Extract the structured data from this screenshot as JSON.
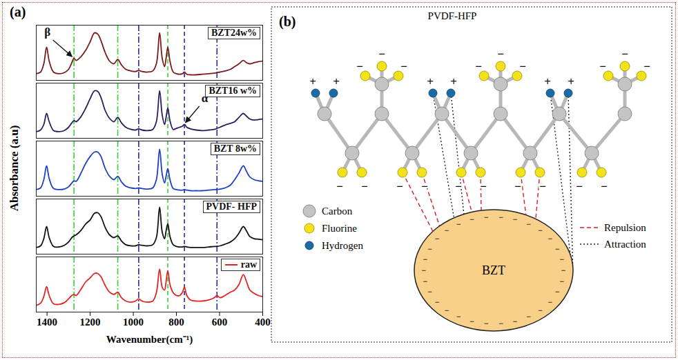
{
  "chart_data": {
    "type": "line",
    "panel_label": "(a)",
    "x_label": "Wavenumber(cm⁻¹)",
    "y_label": "Absorbance (a.u)",
    "xlim": [
      1450,
      400
    ],
    "xticks": [
      1400,
      1200,
      1000,
      800,
      600,
      400
    ],
    "ylim": [
      0,
      1
    ],
    "tick_labels": "x",
    "grid": false,
    "legend": "top-right",
    "x": [
      1450,
      1430,
      1415,
      1402,
      1390,
      1370,
      1345,
      1320,
      1300,
      1285,
      1275,
      1265,
      1245,
      1220,
      1200,
      1180,
      1165,
      1150,
      1130,
      1110,
      1090,
      1072,
      1055,
      1035,
      1010,
      990,
      975,
      960,
      935,
      910,
      893,
      878,
      866,
      855,
      848,
      840,
      830,
      815,
      800,
      785,
      772,
      763,
      752,
      735,
      710,
      680,
      650,
      625,
      612,
      598,
      575,
      550,
      530,
      510,
      490,
      475,
      460,
      440,
      420,
      400
    ],
    "series": [
      {
        "name": "BZT24w%",
        "color": "#7a1a1a",
        "values": [
          0.12,
          0.15,
          0.3,
          0.6,
          0.35,
          0.15,
          0.12,
          0.14,
          0.2,
          0.32,
          0.4,
          0.36,
          0.42,
          0.55,
          0.7,
          0.86,
          0.84,
          0.72,
          0.5,
          0.35,
          0.3,
          0.38,
          0.28,
          0.2,
          0.17,
          0.16,
          0.18,
          0.16,
          0.15,
          0.17,
          0.3,
          0.86,
          0.4,
          0.25,
          0.4,
          0.6,
          0.35,
          0.15,
          0.12,
          0.11,
          0.12,
          0.15,
          0.11,
          0.1,
          0.1,
          0.11,
          0.12,
          0.13,
          0.14,
          0.15,
          0.17,
          0.2,
          0.25,
          0.3,
          0.36,
          0.32,
          0.3,
          0.32,
          0.34,
          0.35
        ]
      },
      {
        "name": "BZT16 w%",
        "color": "#2d1b5e",
        "values": [
          0.12,
          0.15,
          0.25,
          0.45,
          0.3,
          0.14,
          0.12,
          0.14,
          0.2,
          0.28,
          0.32,
          0.3,
          0.38,
          0.55,
          0.72,
          0.86,
          0.85,
          0.74,
          0.5,
          0.36,
          0.3,
          0.38,
          0.28,
          0.2,
          0.16,
          0.15,
          0.17,
          0.15,
          0.14,
          0.16,
          0.3,
          0.86,
          0.42,
          0.25,
          0.38,
          0.55,
          0.32,
          0.16,
          0.18,
          0.2,
          0.22,
          0.25,
          0.2,
          0.17,
          0.15,
          0.14,
          0.15,
          0.16,
          0.18,
          0.2,
          0.24,
          0.27,
          0.3,
          0.38,
          0.45,
          0.4,
          0.35,
          0.33,
          0.34,
          0.35
        ]
      },
      {
        "name": "BZT 8w%",
        "color": "#1e3fc0",
        "values": [
          0.12,
          0.15,
          0.3,
          0.55,
          0.32,
          0.14,
          0.12,
          0.13,
          0.17,
          0.24,
          0.28,
          0.27,
          0.4,
          0.6,
          0.72,
          0.8,
          0.8,
          0.72,
          0.5,
          0.36,
          0.3,
          0.36,
          0.26,
          0.18,
          0.15,
          0.14,
          0.15,
          0.14,
          0.13,
          0.15,
          0.3,
          0.85,
          0.4,
          0.24,
          0.36,
          0.5,
          0.3,
          0.14,
          0.12,
          0.11,
          0.11,
          0.12,
          0.11,
          0.1,
          0.1,
          0.1,
          0.11,
          0.12,
          0.12,
          0.13,
          0.15,
          0.2,
          0.3,
          0.42,
          0.55,
          0.45,
          0.35,
          0.3,
          0.28,
          0.27
        ]
      },
      {
        "name": "PVDF- HFP",
        "color": "#111111",
        "values": [
          0.12,
          0.15,
          0.28,
          0.5,
          0.3,
          0.14,
          0.13,
          0.16,
          0.22,
          0.3,
          0.33,
          0.35,
          0.42,
          0.55,
          0.62,
          0.74,
          0.75,
          0.68,
          0.48,
          0.35,
          0.3,
          0.33,
          0.24,
          0.17,
          0.15,
          0.15,
          0.17,
          0.16,
          0.15,
          0.17,
          0.3,
          0.85,
          0.4,
          0.28,
          0.42,
          0.55,
          0.32,
          0.17,
          0.14,
          0.13,
          0.13,
          0.14,
          0.13,
          0.12,
          0.12,
          0.12,
          0.13,
          0.14,
          0.14,
          0.15,
          0.18,
          0.22,
          0.28,
          0.38,
          0.5,
          0.42,
          0.32,
          0.28,
          0.27,
          0.26
        ]
      },
      {
        "name": "raw",
        "color": "#e02424",
        "values": [
          0.12,
          0.16,
          0.28,
          0.46,
          0.3,
          0.15,
          0.14,
          0.17,
          0.24,
          0.3,
          0.32,
          0.3,
          0.4,
          0.55,
          0.62,
          0.7,
          0.7,
          0.64,
          0.48,
          0.36,
          0.32,
          0.36,
          0.26,
          0.2,
          0.18,
          0.2,
          0.24,
          0.2,
          0.18,
          0.2,
          0.35,
          0.78,
          0.45,
          0.4,
          0.55,
          0.75,
          0.5,
          0.35,
          0.3,
          0.3,
          0.36,
          0.45,
          0.3,
          0.22,
          0.2,
          0.2,
          0.22,
          0.26,
          0.3,
          0.26,
          0.3,
          0.36,
          0.4,
          0.5,
          0.68,
          0.55,
          0.4,
          0.34,
          0.3,
          0.28
        ]
      }
    ],
    "vlines": [
      {
        "x": 1275,
        "color": "#3ccf3c",
        "line_style": "dashdot"
      },
      {
        "x": 1072,
        "color": "#3ccf3c",
        "line_style": "dashdot"
      },
      {
        "x": 975,
        "color": "#1f2f9e",
        "line_style": "dashdot"
      },
      {
        "x": 840,
        "color": "#3ccf3c",
        "line_style": "dashed"
      },
      {
        "x": 763,
        "color": "#1f2f9e",
        "line_style": "dashed"
      },
      {
        "x": 612,
        "color": "#1f2f9e",
        "line_style": "dashdot"
      }
    ],
    "annotations": [
      {
        "text": "β",
        "x": 1275,
        "series": "BZT24w%"
      },
      {
        "text": "α",
        "x": 763,
        "series": "BZT16 w%"
      }
    ]
  },
  "diagram": {
    "panel_label": "(b)",
    "title": "PVDF-HFP",
    "atom_legend": [
      {
        "label": "Carbon",
        "color": "#c4c4c4"
      },
      {
        "label": "Fluorine",
        "color": "#f2e21b"
      },
      {
        "label": "Hydrogen",
        "color": "#1a6ca8"
      }
    ],
    "line_legend": [
      {
        "label": "Repulsion",
        "color": "#d42020",
        "line_style": "dashed"
      },
      {
        "label": "Attraction",
        "color": "#222222",
        "line_style": "dotted"
      }
    ],
    "particle": {
      "label": "BZT",
      "color": "#f8d08a"
    },
    "charges": {
      "positive": "+",
      "negative": "−"
    }
  }
}
